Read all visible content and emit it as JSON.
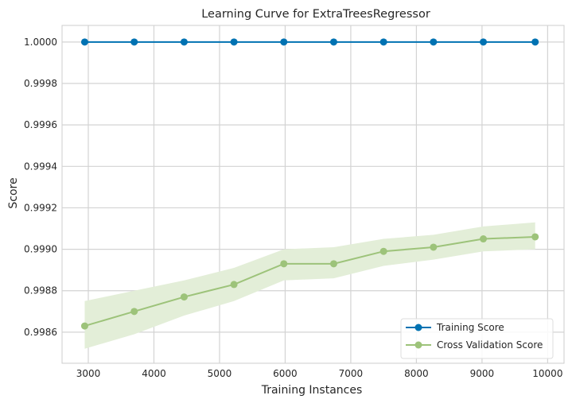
{
  "chart_data": {
    "type": "line",
    "title": "Learning Curve for ExtraTreesRegressor",
    "xlabel": "Training Instances",
    "ylabel": "Score",
    "xlim": [
      2600,
      10250
    ],
    "ylim": [
      0.99845,
      1.00008
    ],
    "grid": true,
    "legend_position": "bottom-right",
    "x_ticks": [
      3000,
      4000,
      5000,
      6000,
      7000,
      8000,
      9000,
      10000
    ],
    "x_tick_labels": [
      "3000",
      "4000",
      "5000",
      "6000",
      "7000",
      "8000",
      "9000",
      "10000"
    ],
    "y_ticks": [
      0.9986,
      0.9988,
      0.999,
      0.9992,
      0.9994,
      0.9996,
      0.9998,
      1.0
    ],
    "y_tick_labels": [
      "0.9986",
      "0.9988",
      "0.9990",
      "0.9992",
      "0.9994",
      "0.9996",
      "0.9998",
      "1.0000"
    ],
    "x": [
      2945,
      3700,
      4460,
      5220,
      5980,
      6740,
      7500,
      8260,
      9020,
      9810
    ],
    "series": [
      {
        "name": "Training Score",
        "color": "#0072b2",
        "values": [
          1.0,
          1.0,
          1.0,
          1.0,
          1.0,
          1.0,
          1.0,
          1.0,
          1.0,
          1.0
        ],
        "band_lower": [
          1.0,
          1.0,
          1.0,
          1.0,
          1.0,
          1.0,
          1.0,
          1.0,
          1.0,
          1.0
        ],
        "band_upper": [
          1.0,
          1.0,
          1.0,
          1.0,
          1.0,
          1.0,
          1.0,
          1.0,
          1.0,
          1.0
        ]
      },
      {
        "name": "Cross Validation Score",
        "color": "#9dc37a",
        "band_color": "#e3eed8",
        "values": [
          0.99863,
          0.9987,
          0.99877,
          0.99883,
          0.99893,
          0.99893,
          0.99899,
          0.99901,
          0.99905,
          0.99906
        ],
        "band_lower": [
          0.99852,
          0.99859,
          0.99868,
          0.99875,
          0.99885,
          0.99886,
          0.99892,
          0.99895,
          0.99899,
          0.999
        ],
        "band_upper": [
          0.99875,
          0.9988,
          0.99885,
          0.99891,
          0.999,
          0.99901,
          0.99905,
          0.99907,
          0.99911,
          0.99913
        ]
      }
    ]
  }
}
